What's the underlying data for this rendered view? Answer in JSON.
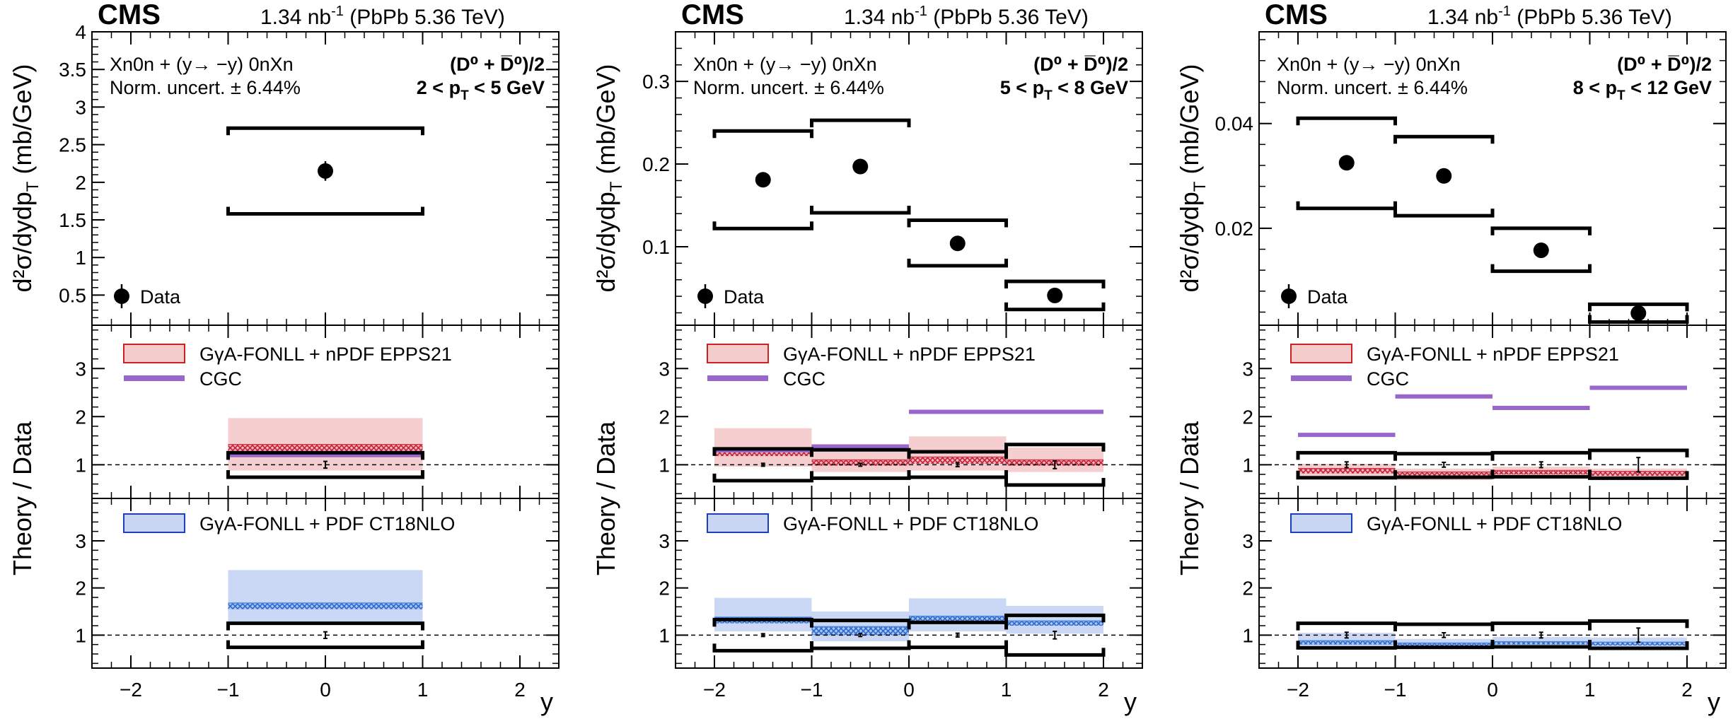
{
  "figure": {
    "experiment": "CMS",
    "lumi_main": "1.34 nb",
    "lumi_sup": "-1",
    "lumi_tail": " (PbPb 5.36 TeV)",
    "selection": "Xn0n + (y→ −y) 0nXn",
    "norm_uncert": "Norm. uncert. ± 6.44%",
    "particle_label": "(D⁰ + D̅⁰)/2",
    "ylabel_top": "d²σ/dydp",
    "ylabel_top_sub": "T",
    "ylabel_top_unit": " (mb/GeV)",
    "ylabel_ratio": "Theory / Data",
    "xlabel": "y",
    "legend_data": "Data",
    "legend_nPDF": "GγA-FONLL + nPDF EPPS21",
    "legend_CGC": "CGC",
    "legend_PDF": "GγA-FONLL + PDF CT18NLO",
    "colors": {
      "npdf_fill": "#f4cccc",
      "npdf_edge": "#cc2222",
      "npdf_hatch": "#d23a48",
      "cgc": "#9966cc",
      "pdf_fill": "#c8d6f4",
      "pdf_edge": "#1a3fbf",
      "pdf_hatch": "#4a86d8"
    }
  },
  "chart_data": [
    {
      "type": "scatter",
      "title": "2 < pT < 5 GeV",
      "pt_label": "2 < p",
      "pt_sub": "T",
      "pt_tail": " < 5 GeV",
      "xlabel": "y",
      "ylabel": "d²σ/dydpT (mb/GeV)",
      "xlim": [
        -2.4,
        2.4
      ],
      "ylim": [
        0.1,
        4.0
      ],
      "yticks": [
        0.5,
        1,
        1.5,
        2,
        2.5,
        3,
        3.5,
        4
      ],
      "ytick_labels": [
        "0.5",
        "1",
        "1.5",
        "2",
        "2.5",
        "3",
        "3.5",
        "4"
      ],
      "xticks": [
        -2,
        -1,
        0,
        1,
        2
      ],
      "xtick_labels": [
        "−2",
        "−1",
        "0",
        "1",
        "2"
      ],
      "bins": [
        [
          -1,
          1
        ]
      ],
      "data": {
        "y": [
          0
        ],
        "values": [
          2.15
        ],
        "stat_err": [
          0.13
        ],
        "syst_up": [
          2.72
        ],
        "syst_down": [
          1.58
        ]
      },
      "ratio_nPDF": {
        "ylim": [
          0.3,
          3.9
        ],
        "yticks": [
          1,
          2,
          3
        ],
        "ytick_labels": [
          "1",
          "2",
          "3"
        ],
        "data_unc_up": [
          1.25
        ],
        "data_unc_down": [
          0.74
        ],
        "data_stat": [
          0.07
        ],
        "band_low": [
          0.88
        ],
        "band_high": [
          1.97
        ],
        "central_low": [
          1.28
        ],
        "central_high": [
          1.42
        ],
        "cgc": [
          1.2
        ]
      },
      "ratio_PDF": {
        "ylim": [
          0.3,
          3.9
        ],
        "yticks": [
          1,
          2,
          3
        ],
        "ytick_labels": [
          "1",
          "2",
          "3"
        ],
        "data_unc_up": [
          1.25
        ],
        "data_unc_down": [
          0.74
        ],
        "data_stat": [
          0.07
        ],
        "band_low": [
          1.25
        ],
        "band_high": [
          2.38
        ],
        "central_low": [
          1.55
        ],
        "central_high": [
          1.68
        ]
      }
    },
    {
      "type": "scatter",
      "title": "5 < pT < 8 GeV",
      "pt_label": "5 < p",
      "pt_sub": "T",
      "pt_tail": " < 8 GeV",
      "xlabel": "y",
      "ylabel": "d²σ/dydpT (mb/GeV)",
      "xlim": [
        -2.4,
        2.4
      ],
      "ylim": [
        0.005,
        0.36
      ],
      "yticks": [
        0.1,
        0.2,
        0.3
      ],
      "ytick_labels": [
        "0.1",
        "0.2",
        "0.3"
      ],
      "xticks": [
        -2,
        -1,
        0,
        1,
        2
      ],
      "xtick_labels": [
        "−2",
        "−1",
        "0",
        "1",
        "2"
      ],
      "bins": [
        [
          -2,
          -1
        ],
        [
          -1,
          0
        ],
        [
          0,
          1
        ],
        [
          1,
          2
        ]
      ],
      "data": {
        "y": [
          -1.5,
          -0.5,
          0.5,
          1.5
        ],
        "values": [
          0.181,
          0.197,
          0.104,
          0.041
        ],
        "stat_err": [
          0.004,
          0.004,
          0.003,
          0.002
        ],
        "syst_up": [
          0.24,
          0.253,
          0.132,
          0.058
        ],
        "syst_down": [
          0.122,
          0.141,
          0.077,
          0.024
        ]
      },
      "ratio_nPDF": {
        "ylim": [
          0.3,
          3.9
        ],
        "yticks": [
          1,
          2,
          3
        ],
        "ytick_labels": [
          "1",
          "2",
          "3"
        ],
        "data_unc_up": [
          1.33,
          1.31,
          1.27,
          1.42
        ],
        "data_unc_down": [
          0.67,
          0.72,
          0.74,
          0.58
        ],
        "data_stat": [
          0.03,
          0.03,
          0.04,
          0.08
        ],
        "band_low": [
          0.96,
          0.85,
          0.88,
          0.85
        ],
        "band_high": [
          1.76,
          1.42,
          1.59,
          1.36
        ],
        "central_low": [
          1.18,
          0.98,
          1.02,
          0.98
        ],
        "central_high": [
          1.32,
          1.1,
          1.16,
          1.1
        ],
        "cgc": [
          1.3,
          1.38,
          2.1,
          2.1
        ]
      },
      "ratio_PDF": {
        "ylim": [
          0.3,
          3.9
        ],
        "yticks": [
          1,
          2,
          3
        ],
        "ytick_labels": [
          "1",
          "2",
          "3"
        ],
        "data_unc_up": [
          1.33,
          1.31,
          1.27,
          1.42
        ],
        "data_unc_down": [
          0.67,
          0.72,
          0.74,
          0.58
        ],
        "data_stat": [
          0.03,
          0.03,
          0.04,
          0.08
        ],
        "band_low": [
          1.08,
          0.87,
          1.08,
          1.03
        ],
        "band_high": [
          1.79,
          1.5,
          1.78,
          1.62
        ],
        "central_low": [
          1.25,
          1.0,
          1.28,
          1.2
        ],
        "central_high": [
          1.38,
          1.18,
          1.4,
          1.3
        ]
      }
    },
    {
      "type": "scatter",
      "title": "8 < pT < 12 GeV",
      "pt_label": "8 < p",
      "pt_sub": "T",
      "pt_tail": " < 12 GeV",
      "xlabel": "y",
      "ylabel": "d²σ/dydpT (mb/GeV)",
      "xlim": [
        -2.4,
        2.4
      ],
      "ylim": [
        0.0015,
        0.0575
      ],
      "yticks": [
        0.02,
        0.04
      ],
      "ytick_labels": [
        "0.02",
        "0.04"
      ],
      "xticks": [
        -2,
        -1,
        0,
        1,
        2
      ],
      "xtick_labels": [
        "−2",
        "−1",
        "0",
        "1",
        "2"
      ],
      "bins": [
        [
          -2,
          -1
        ],
        [
          -1,
          0
        ],
        [
          0,
          1
        ],
        [
          1,
          2
        ]
      ],
      "data": {
        "y": [
          -1.5,
          -0.5,
          0.5,
          1.5
        ],
        "values": [
          0.0325,
          0.03,
          0.0158,
          0.0038
        ],
        "stat_err": [
          0.0008,
          0.0008,
          0.0006,
          0.0003
        ],
        "syst_up": [
          0.041,
          0.0375,
          0.02,
          0.0055
        ],
        "syst_down": [
          0.0238,
          0.0224,
          0.0118,
          0.0021
        ]
      },
      "ratio_nPDF": {
        "ylim": [
          0.3,
          3.9
        ],
        "yticks": [
          1,
          2,
          3
        ],
        "ytick_labels": [
          "1",
          "2",
          "3"
        ],
        "data_unc_up": [
          1.25,
          1.23,
          1.25,
          1.3
        ],
        "data_unc_down": [
          0.73,
          0.74,
          0.75,
          0.72
        ],
        "data_stat": [
          0.06,
          0.05,
          0.06,
          0.15
        ],
        "band_low": [
          0.72,
          0.68,
          0.72,
          0.68
        ],
        "band_high": [
          1.02,
          0.92,
          0.96,
          0.92
        ],
        "central_low": [
          0.82,
          0.76,
          0.8,
          0.77
        ],
        "central_high": [
          0.92,
          0.85,
          0.88,
          0.86
        ],
        "cgc": [
          1.62,
          2.42,
          2.18,
          2.6
        ]
      },
      "ratio_PDF": {
        "ylim": [
          0.3,
          3.9
        ],
        "yticks": [
          1,
          2,
          3
        ],
        "ytick_labels": [
          "1",
          "2",
          "3"
        ],
        "data_unc_up": [
          1.25,
          1.23,
          1.25,
          1.3
        ],
        "data_unc_down": [
          0.73,
          0.74,
          0.75,
          0.72
        ],
        "data_stat": [
          0.06,
          0.05,
          0.06,
          0.15
        ],
        "band_low": [
          0.75,
          0.72,
          0.75,
          0.72
        ],
        "band_high": [
          1.05,
          0.92,
          0.96,
          0.95
        ],
        "central_low": [
          0.8,
          0.76,
          0.8,
          0.78
        ],
        "central_high": [
          0.88,
          0.83,
          0.86,
          0.85
        ]
      }
    }
  ]
}
